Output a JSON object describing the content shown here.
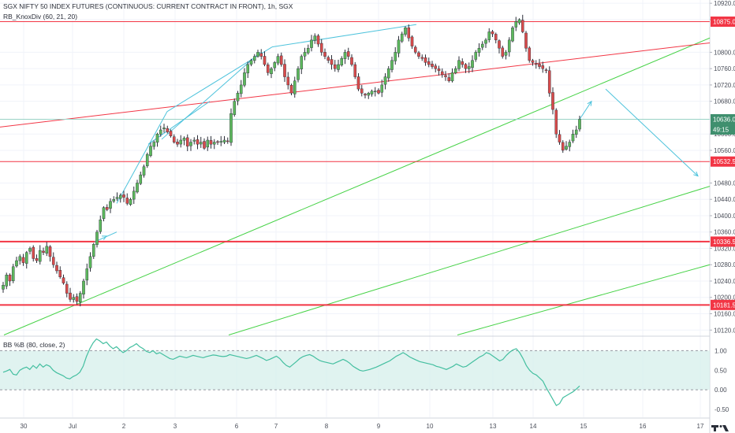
{
  "header": {
    "title": "SGX NIFTY 50 INDEX FUTURES (CONTINUOUS: CURRENT CONTRACT IN FRONT), 1h, SGX",
    "indicator": "RB_KnoxDiv (60, 21, 20)"
  },
  "indicator_panel": {
    "label": "BB %B (80, close, 2)"
  },
  "colors": {
    "up": "#5cb85c",
    "down": "#d94b4b",
    "red_line": "#f23645",
    "green_line": "#46d246",
    "cyan": "#4ec3dc",
    "pctb_line": "#44bfa0",
    "band_fill": "#d8f0ec",
    "price_badge": "#3f8f6e"
  },
  "chart_data": [
    {
      "type": "candlestick",
      "title": "SGX NIFTY 50 INDEX FUTURES (CONTINUOUS: CURRENT CONTRACT IN FRONT), 1h, SGX",
      "x_tick_labels": [
        "30",
        "Jul",
        "2",
        "3",
        "6",
        "7",
        "8",
        "9",
        "10",
        "13",
        "14",
        "15",
        "16",
        "17"
      ],
      "y_tick_labels": [
        "10920.0",
        "10880.0",
        "10800.0",
        "10760.0",
        "10720.0",
        "10680.0",
        "10600.0",
        "10560.0",
        "10480.0",
        "10440.0",
        "10400.0",
        "10360.0",
        "10320.0",
        "10280.0",
        "10240.0",
        "10200.0",
        "10160.0",
        "10120.0"
      ],
      "ylim": [
        10107,
        10928
      ],
      "price_labels": [
        {
          "value": "10875.0",
          "kind": "level"
        },
        {
          "value": "10636.0",
          "kind": "last"
        },
        {
          "value": "49:15",
          "kind": "countdown"
        },
        {
          "value": "10532.5",
          "kind": "level"
        },
        {
          "value": "10336.5",
          "kind": "level"
        },
        {
          "value": "10181.5",
          "kind": "level"
        }
      ],
      "horizontal_levels": [
        10875.0,
        10532.5,
        10336.5,
        10181.5
      ],
      "last_price": 10636.0,
      "closes": [
        10230,
        10255,
        10240,
        10275,
        10290,
        10300,
        10285,
        10310,
        10320,
        10295,
        10290,
        10315,
        10310,
        10325,
        10300,
        10280,
        10265,
        10250,
        10235,
        10210,
        10195,
        10200,
        10190,
        10210,
        10240,
        10270,
        10300,
        10330,
        10360,
        10390,
        10420,
        10415,
        10435,
        10440,
        10445,
        10450,
        10445,
        10430,
        10440,
        10460,
        10480,
        10500,
        10520,
        10550,
        10570,
        10580,
        10600,
        10610,
        10615,
        10605,
        10595,
        10580,
        10575,
        10585,
        10590,
        10570,
        10580,
        10585,
        10575,
        10580,
        10565,
        10585,
        10575,
        10580,
        10580,
        10582,
        10585,
        10582,
        10650,
        10680,
        10700,
        10720,
        10750,
        10770,
        10780,
        10790,
        10800,
        10790,
        10770,
        10750,
        10760,
        10775,
        10790,
        10770,
        10740,
        10720,
        10700,
        10730,
        10760,
        10790,
        10800,
        10810,
        10830,
        10840,
        10820,
        10800,
        10790,
        10780,
        10770,
        10760,
        10770,
        10785,
        10800,
        10790,
        10770,
        10740,
        10710,
        10700,
        10695,
        10700,
        10705,
        10705,
        10700,
        10720,
        10740,
        10760,
        10780,
        10800,
        10830,
        10845,
        10860,
        10835,
        10815,
        10800,
        10790,
        10785,
        10775,
        10770,
        10765,
        10760,
        10755,
        10745,
        10740,
        10730,
        10750,
        10760,
        10780,
        10770,
        10760,
        10765,
        10780,
        10800,
        10810,
        10820,
        10830,
        10850,
        10845,
        10830,
        10810,
        10790,
        10800,
        10830,
        10860,
        10875,
        10880,
        10850,
        10810,
        10780,
        10775,
        10770,
        10765,
        10760,
        10755,
        10700,
        10660,
        10600,
        10580,
        10560,
        10570,
        10580,
        10600,
        10610,
        10636
      ]
    },
    {
      "type": "line",
      "title": "BB %B (80, close, 2)",
      "y_tick_labels": [
        "1.00",
        "0.50",
        "0.00",
        "-0.50"
      ],
      "ylim": [
        -0.7,
        1.35
      ],
      "band_levels": [
        1.0,
        0.0
      ],
      "values": [
        0.45,
        0.48,
        0.52,
        0.4,
        0.38,
        0.5,
        0.55,
        0.58,
        0.52,
        0.62,
        0.55,
        0.66,
        0.58,
        0.64,
        0.6,
        0.5,
        0.44,
        0.4,
        0.36,
        0.3,
        0.28,
        0.34,
        0.38,
        0.45,
        0.6,
        0.85,
        1.05,
        1.2,
        1.3,
        1.25,
        1.18,
        1.22,
        1.12,
        1.05,
        1.1,
        1.02,
        0.95,
        1.0,
        1.08,
        1.12,
        1.18,
        1.1,
        1.05,
        0.98,
        0.95,
        1.0,
        0.92,
        0.95,
        0.9,
        0.85,
        0.8,
        0.78,
        0.82,
        0.86,
        0.84,
        0.82,
        0.85,
        0.88,
        0.86,
        0.84,
        0.82,
        0.85,
        0.87,
        0.89,
        0.88,
        0.86,
        0.85,
        0.86,
        0.9,
        0.88,
        0.86,
        0.84,
        0.82,
        0.8,
        0.82,
        0.85,
        0.88,
        0.84,
        0.8,
        0.75,
        0.78,
        0.82,
        0.86,
        0.8,
        0.7,
        0.62,
        0.58,
        0.65,
        0.72,
        0.8,
        0.85,
        0.88,
        0.9,
        0.86,
        0.8,
        0.75,
        0.72,
        0.7,
        0.68,
        0.66,
        0.7,
        0.74,
        0.78,
        0.74,
        0.68,
        0.6,
        0.55,
        0.5,
        0.48,
        0.5,
        0.52,
        0.55,
        0.58,
        0.62,
        0.66,
        0.7,
        0.74,
        0.8,
        0.86,
        0.9,
        0.95,
        0.9,
        0.84,
        0.8,
        0.76,
        0.72,
        0.7,
        0.68,
        0.66,
        0.64,
        0.6,
        0.58,
        0.55,
        0.52,
        0.56,
        0.6,
        0.66,
        0.62,
        0.58,
        0.6,
        0.66,
        0.72,
        0.78,
        0.84,
        0.88,
        0.95,
        0.92,
        0.86,
        0.8,
        0.74,
        0.78,
        0.88,
        0.96,
        1.02,
        1.05,
        0.95,
        0.8,
        0.62,
        0.5,
        0.42,
        0.38,
        0.3,
        0.22,
        0.05,
        -0.1,
        -0.25,
        -0.4,
        -0.35,
        -0.2,
        -0.15,
        -0.1,
        -0.05,
        0.02,
        0.1
      ]
    }
  ]
}
